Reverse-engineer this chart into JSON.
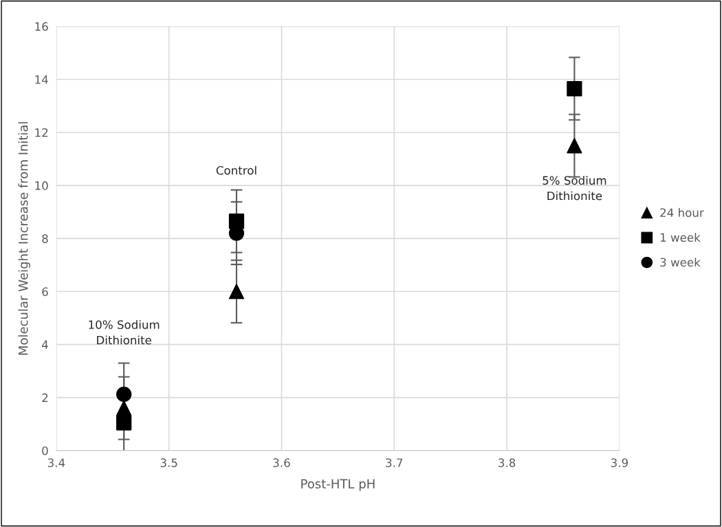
{
  "chart_data": {
    "type": "scatter",
    "xlabel": "Post-HTL pH",
    "ylabel": "Molecular Weight Increase from Initial",
    "x": [
      3.46,
      3.56,
      3.86
    ],
    "series": [
      {
        "name": "24 hour",
        "color": "#000000",
        "marker": "triangle",
        "values": [
          1.6,
          6.0,
          11.5
        ],
        "errors": [
          1.18,
          1.18,
          1.18
        ]
      },
      {
        "name": "1 week",
        "color": "#000000",
        "marker": "square",
        "values": [
          1.05,
          8.65,
          13.65
        ],
        "errors": [
          1.18,
          1.18,
          1.18
        ]
      },
      {
        "name": "3 week",
        "color": "#000000",
        "marker": "circle",
        "values": [
          2.12,
          8.2,
          null
        ],
        "errors": [
          1.18,
          1.18,
          null
        ]
      }
    ],
    "xlim": [
      3.4,
      3.9
    ],
    "xticks": [
      3.4,
      3.5,
      3.6,
      3.7,
      3.8,
      3.9
    ],
    "ylim": [
      0,
      16
    ],
    "yticks": [
      0,
      2,
      4,
      6,
      8,
      10,
      12,
      14,
      16
    ],
    "grid": true,
    "legend": "right",
    "annotations": [
      "10% Sodium\nDithionite",
      "Control",
      "5% Sodium\nDithionite"
    ]
  }
}
